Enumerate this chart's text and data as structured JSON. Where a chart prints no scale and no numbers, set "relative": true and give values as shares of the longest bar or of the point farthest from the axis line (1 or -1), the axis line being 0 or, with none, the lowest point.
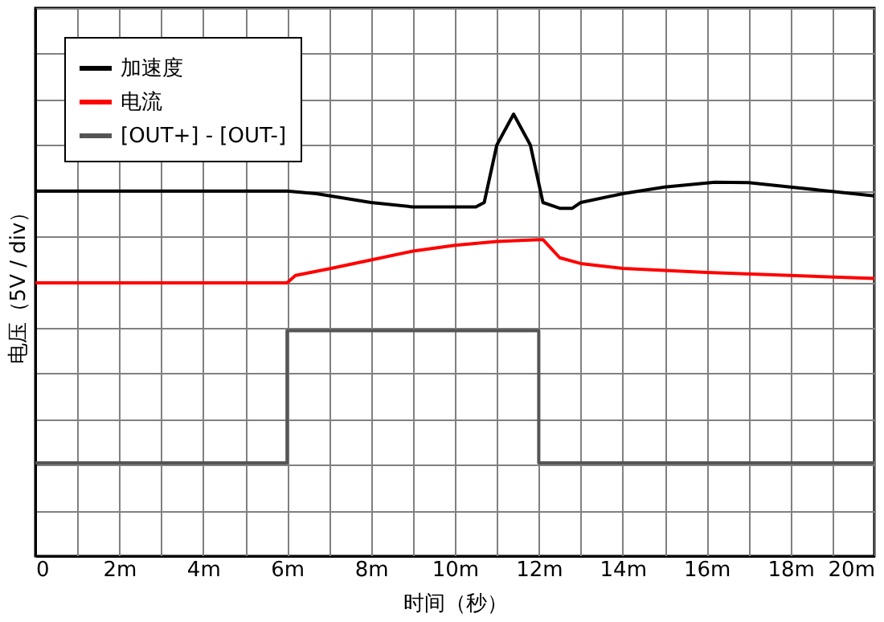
{
  "chart_data": {
    "type": "line",
    "relative": true,
    "xlabel": "时间（秒）",
    "ylabel": "电压（5V / div）",
    "xlim": [
      0,
      20
    ],
    "xticks": [
      0,
      {
        "value": 1,
        "label": null
      },
      {
        "value": 2,
        "label": "2m"
      },
      {
        "value": 3,
        "label": null
      },
      {
        "value": 4,
        "label": "4m"
      },
      {
        "value": 5,
        "label": null
      },
      {
        "value": 6,
        "label": "6m"
      },
      {
        "value": 7,
        "label": null
      },
      {
        "value": 8,
        "label": "8m"
      },
      {
        "value": 9,
        "label": null
      },
      {
        "value": 10,
        "label": "10m"
      },
      {
        "value": 11,
        "label": null
      },
      {
        "value": 12,
        "label": "12m"
      },
      {
        "value": 13,
        "label": null
      },
      {
        "value": 14,
        "label": "14m"
      },
      {
        "value": 15,
        "label": null
      },
      {
        "value": 16,
        "label": "16m"
      },
      {
        "value": 17,
        "label": null
      },
      {
        "value": 18,
        "label": "18m"
      },
      {
        "value": 19,
        "label": null
      },
      {
        "value": 20,
        "label": "20m"
      }
    ],
    "grid": true,
    "legend": "top left",
    "line_style": "solid",
    "marker": "none",
    "series": [
      {
        "name": "加速度",
        "color": "#000000",
        "x": [
          0,
          2,
          4,
          6,
          6.7,
          8,
          9,
          10,
          10.5,
          10.7,
          11,
          11.4,
          11.8,
          12.1,
          12.5,
          12.8,
          13,
          14,
          15,
          16.2,
          17,
          18,
          19,
          20
        ],
        "values": [
          0.826,
          0.826,
          0.826,
          0.826,
          0.82,
          0.8,
          0.79,
          0.79,
          0.79,
          0.8,
          0.93,
          1.0,
          0.93,
          0.8,
          0.787,
          0.787,
          0.8,
          0.82,
          0.835,
          0.846,
          0.845,
          0.835,
          0.825,
          0.815
        ]
      },
      {
        "name": "电流",
        "color": "#ff0000",
        "x": [
          0,
          6,
          6.2,
          7,
          8,
          9,
          10,
          11,
          12,
          12.1,
          12.5,
          13,
          14,
          16,
          18,
          20
        ],
        "values": [
          0.618,
          0.618,
          0.635,
          0.65,
          0.67,
          0.69,
          0.703,
          0.712,
          0.716,
          0.716,
          0.675,
          0.662,
          0.651,
          0.642,
          0.635,
          0.628
        ]
      },
      {
        "name": "[OUT+] - [OUT-]",
        "color": "#555555",
        "x": [
          0,
          6,
          6,
          12,
          12,
          20
        ],
        "values": [
          0.211,
          0.211,
          0.51,
          0.51,
          0.211,
          0.211
        ]
      }
    ]
  }
}
